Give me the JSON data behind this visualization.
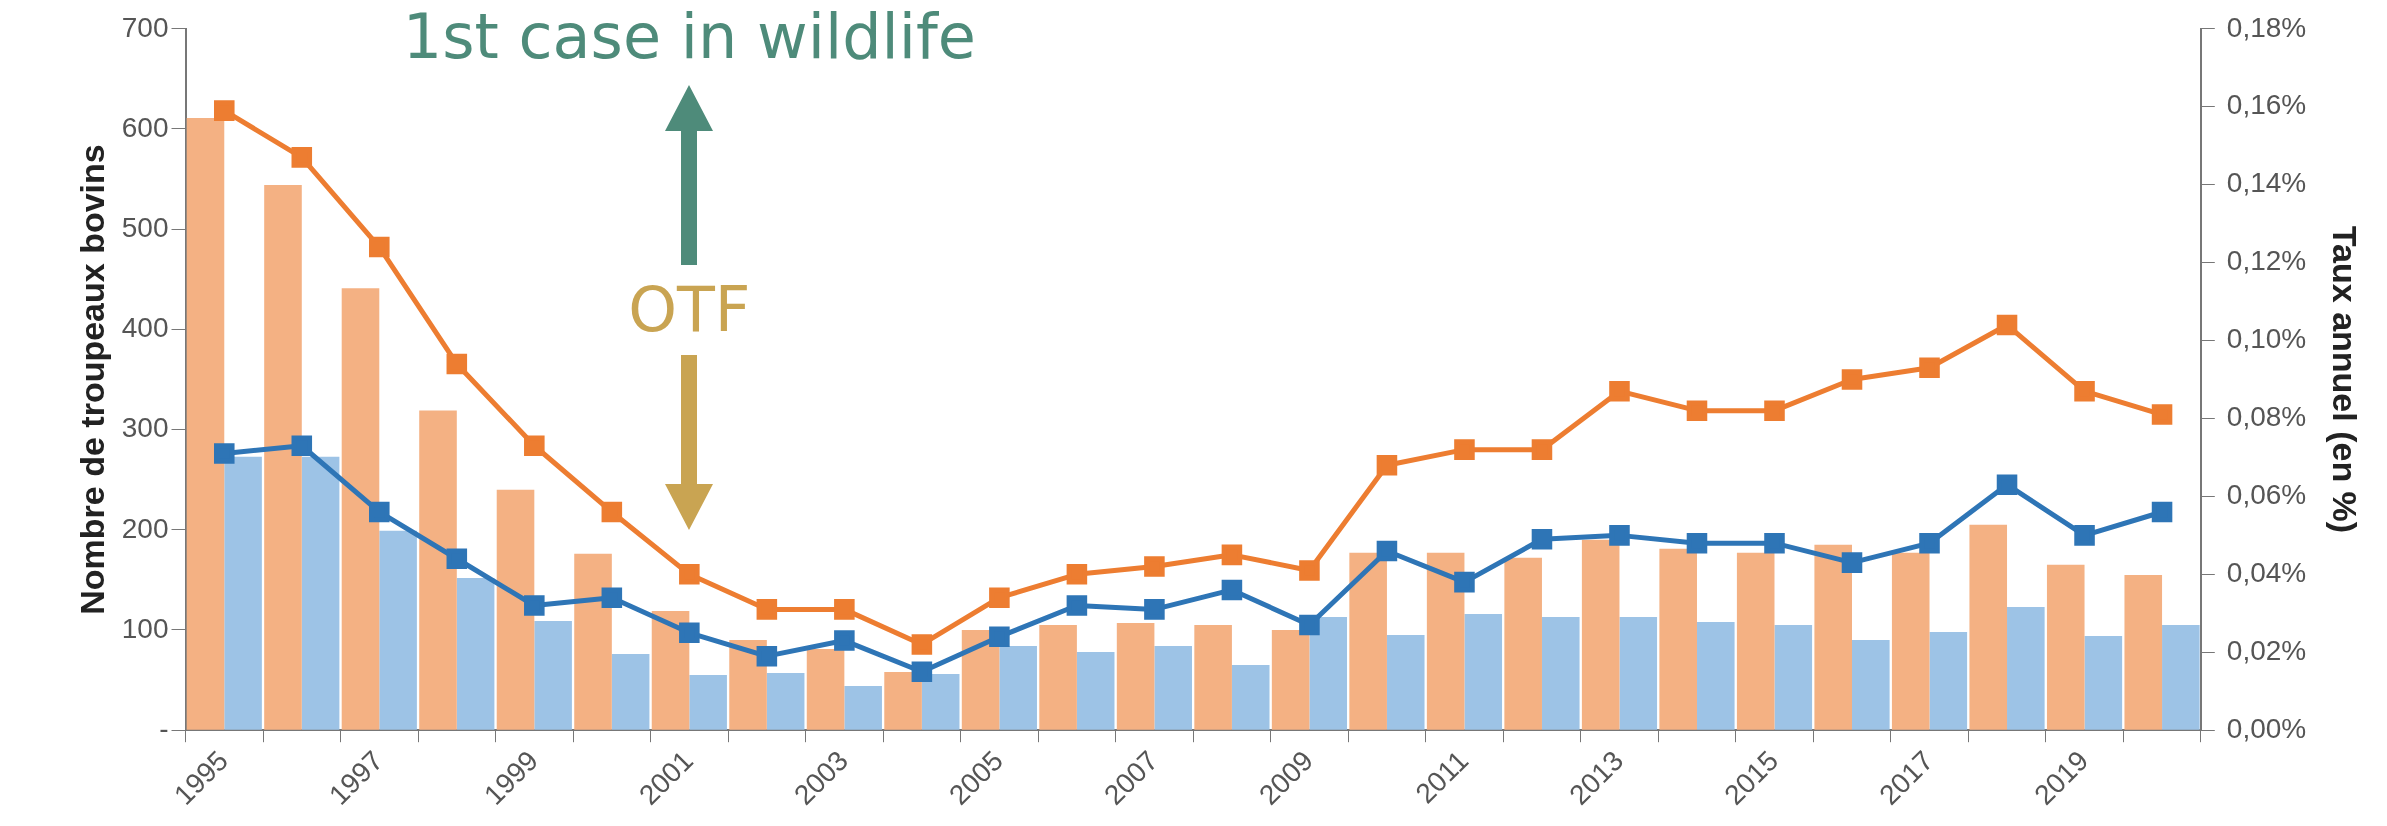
{
  "chart_data": {
    "type": "bar",
    "ylabel": "Nombre de troupeaux bovins",
    "y2label": "Taux annuel (en %)",
    "categories": [
      "1995",
      null,
      "1997",
      null,
      "1999",
      null,
      "2001",
      null,
      "2003",
      null,
      "2005",
      null,
      "2007",
      null,
      "2009",
      null,
      "2011",
      null,
      "2013",
      null,
      "2015",
      null,
      "2017",
      null,
      "2019",
      null
    ],
    "series": [
      {
        "color": "#f4b183",
        "values": [
          611,
          544,
          441,
          319,
          240,
          176,
          119,
          90,
          81,
          58,
          100,
          105,
          107,
          105,
          100,
          177,
          177,
          172,
          190,
          181,
          177,
          185,
          177,
          205,
          165,
          155
        ]
      },
      {
        "color": "#9dc3e6",
        "values": [
          273,
          273,
          199,
          152,
          109,
          76,
          55,
          57,
          44,
          56,
          84,
          78,
          84,
          65,
          113,
          95,
          116,
          113,
          113,
          108,
          105,
          90,
          98,
          123,
          94,
          105
        ]
      },
      {
        "type": "line",
        "axis": "y2",
        "color": "#ed7d31",
        "values": [
          0.159,
          0.147,
          0.124,
          0.094,
          0.073,
          0.056,
          0.04,
          0.031,
          0.031,
          0.022,
          0.034,
          0.04,
          0.042,
          0.045,
          0.041,
          0.068,
          0.072,
          0.072,
          0.087,
          0.082,
          0.082,
          0.09,
          0.093,
          0.104,
          0.087,
          0.081
        ]
      },
      {
        "type": "line",
        "axis": "y2",
        "color": "#2e75b6",
        "values": [
          0.071,
          0.073,
          0.056,
          0.044,
          0.032,
          0.034,
          0.025,
          0.019,
          0.023,
          0.015,
          0.024,
          0.032,
          0.031,
          0.036,
          0.027,
          0.046,
          0.038,
          0.049,
          0.05,
          0.048,
          0.048,
          0.043,
          0.048,
          0.063,
          0.05,
          0.056
        ]
      }
    ],
    "ylim": [
      0,
      700
    ],
    "yticks": [
      {
        "value": 0,
        "label": "-"
      },
      100,
      200,
      300,
      400,
      500,
      600,
      700
    ],
    "y2lim": [
      0,
      0.18
    ],
    "y2ticks": [
      {
        "value": 0,
        "label": "0,00%"
      },
      {
        "value": 0.02,
        "label": "0,02%"
      },
      {
        "value": 0.04,
        "label": "0,04%"
      },
      {
        "value": 0.06,
        "label": "0,06%"
      },
      {
        "value": 0.08,
        "label": "0,08%"
      },
      {
        "value": 0.1,
        "label": "0,10%"
      },
      {
        "value": 0.12,
        "label": "0,12%"
      },
      {
        "value": 0.14,
        "label": "0,14%"
      },
      {
        "value": 0.16,
        "label": "0,16%"
      },
      {
        "value": 0.18,
        "label": "0,18%"
      }
    ],
    "annotations": [
      "1st case in wildlife",
      "OTF"
    ],
    "grid": false,
    "legend": false,
    "marker": "square",
    "line_style": "solid"
  }
}
